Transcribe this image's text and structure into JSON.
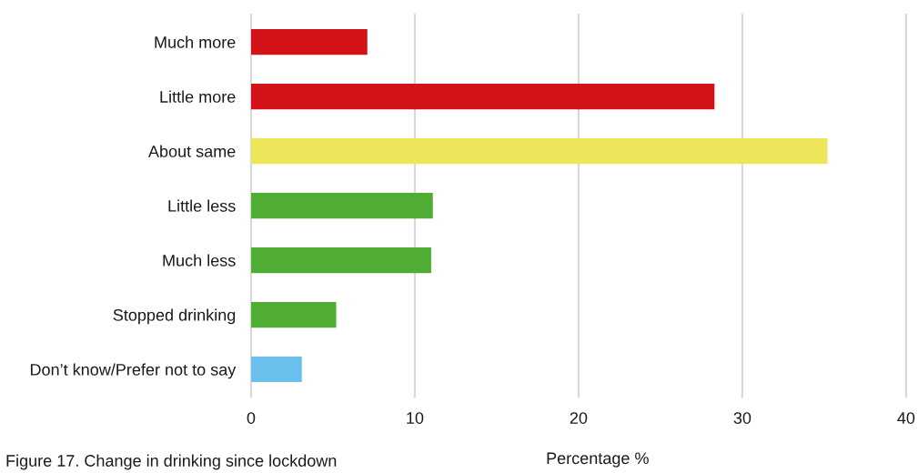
{
  "chart_data": {
    "type": "bar",
    "orientation": "horizontal",
    "categories": [
      "Much more",
      "Little more",
      "About same",
      "Little less",
      "Much less",
      "Stopped drinking",
      "Don’t know/Prefer not to say"
    ],
    "values": [
      7.1,
      28.3,
      35.2,
      11.1,
      11.0,
      5.2,
      3.1
    ],
    "colors": [
      "#d31317",
      "#d31317",
      "#ede55a",
      "#4fad33",
      "#4fad33",
      "#4fad33",
      "#6bbfec"
    ],
    "xlim": [
      0,
      40
    ],
    "xticks": [
      0,
      10,
      20,
      30,
      40
    ],
    "grid": "x",
    "xlabel": "Percentage %",
    "annotations": [
      "Figure 17. Change in drinking since lockdown"
    ]
  }
}
